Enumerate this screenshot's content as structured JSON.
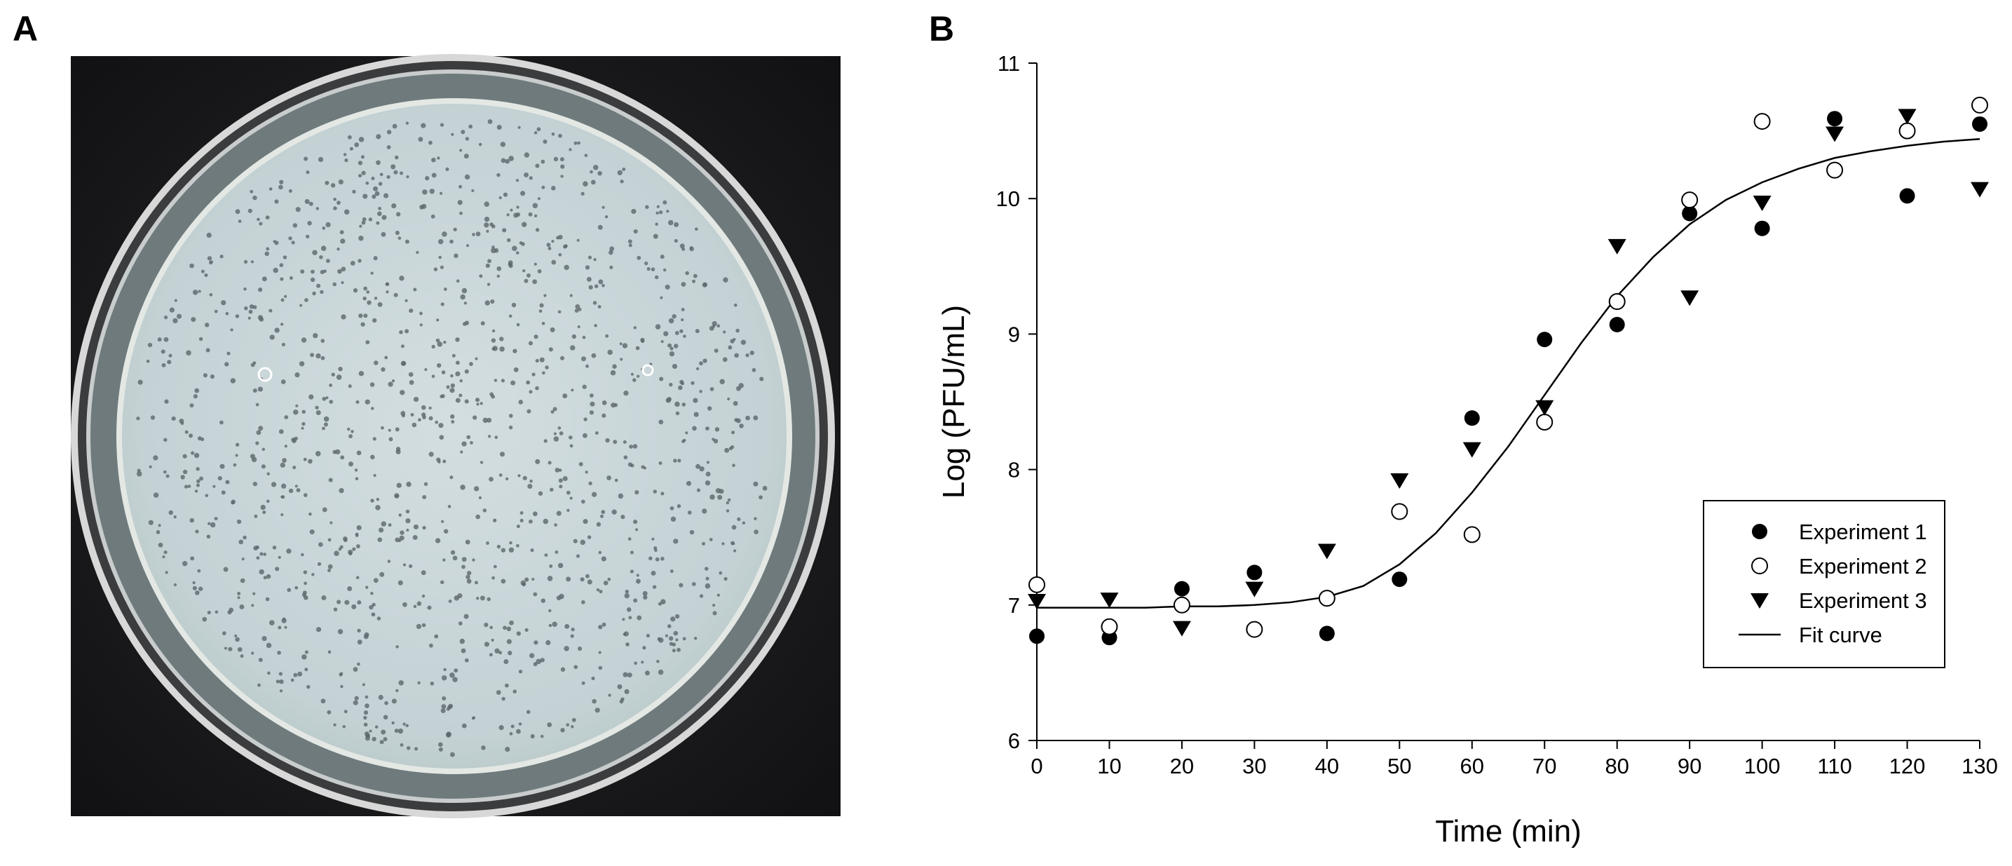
{
  "panel_labels": [
    "A",
    "B"
  ],
  "chart_data": {
    "type": "scatter",
    "x_label": "Time (min)",
    "y_label": "Log (PFU/mL)",
    "x": [
      0,
      10,
      20,
      30,
      40,
      50,
      60,
      70,
      80,
      90,
      100,
      110,
      120,
      130
    ],
    "series": [
      {
        "name": "Experiment 1",
        "color": "#000000",
        "marker": "circle-filled",
        "values": [
          6.77,
          6.76,
          7.12,
          7.24,
          6.79,
          7.19,
          8.38,
          8.96,
          9.07,
          9.89,
          9.78,
          10.59,
          10.02,
          10.55
        ]
      },
      {
        "name": "Experiment 2",
        "color": "#000000",
        "marker": "circle-open",
        "values": [
          7.15,
          6.84,
          7.0,
          6.82,
          7.05,
          7.69,
          7.52,
          8.35,
          9.24,
          9.99,
          10.57,
          10.21,
          10.5,
          10.69
        ]
      },
      {
        "name": "Experiment 3",
        "color": "#000000",
        "marker": "triangle-down",
        "values": [
          7.03,
          7.04,
          6.83,
          7.12,
          7.4,
          7.92,
          8.15,
          8.46,
          9.65,
          9.27,
          9.97,
          10.48,
          10.61,
          10.07
        ]
      },
      {
        "name": "Fit curve",
        "color": "#000000",
        "marker": "line",
        "x": [
          0,
          5,
          10,
          15,
          20,
          25,
          30,
          35,
          40,
          45,
          50,
          55,
          60,
          65,
          70,
          75,
          80,
          85,
          90,
          95,
          100,
          105,
          110,
          115,
          120,
          125,
          130
        ],
        "values": [
          6.98,
          6.98,
          6.98,
          6.98,
          6.99,
          6.99,
          7.0,
          7.02,
          7.06,
          7.14,
          7.3,
          7.53,
          7.83,
          8.17,
          8.55,
          8.93,
          9.28,
          9.57,
          9.81,
          9.99,
          10.12,
          10.22,
          10.3,
          10.35,
          10.39,
          10.42,
          10.44
        ]
      }
    ],
    "xlim": [
      0,
      130
    ],
    "xticks": [
      0,
      10,
      20,
      30,
      40,
      50,
      60,
      70,
      80,
      90,
      100,
      110,
      120,
      130
    ],
    "ylim": [
      6,
      11
    ],
    "yticks": [
      6,
      7,
      8,
      9,
      10,
      11
    ],
    "legend": "lower right"
  }
}
